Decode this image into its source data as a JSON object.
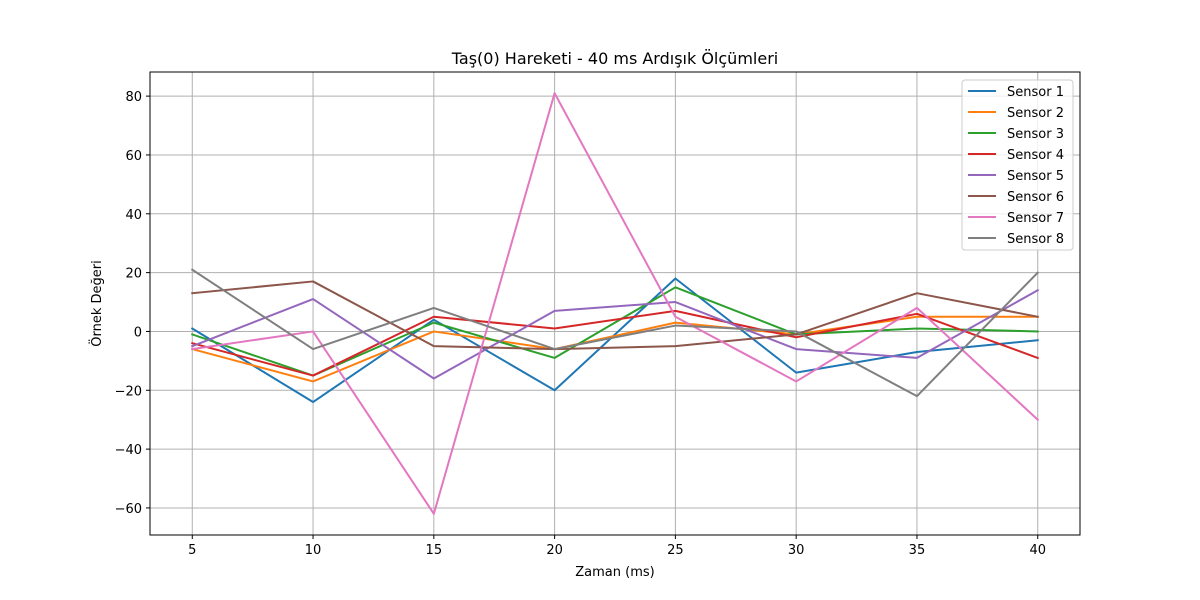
{
  "chart_data": {
    "type": "line",
    "title": "Taş(0) Hareketi - 40 ms Ardışık Ölçümleri",
    "xlabel": "Zaman (ms)",
    "ylabel": "Örnek Değeri",
    "x": [
      5,
      10,
      15,
      20,
      25,
      30,
      35,
      40
    ],
    "xticks": [
      5,
      10,
      15,
      20,
      25,
      30,
      35,
      40
    ],
    "yticks": [
      -60,
      -40,
      -20,
      0,
      20,
      40,
      60,
      80
    ],
    "xlim": [
      3.25,
      41.75
    ],
    "ylim": [
      -69.2,
      88.2
    ],
    "grid": true,
    "legend_position": "top-right",
    "series": [
      {
        "name": "Sensor 1",
        "color": "#1f77b4",
        "values": [
          1,
          -24,
          4,
          -20,
          18,
          -14,
          -7,
          -3
        ]
      },
      {
        "name": "Sensor 2",
        "color": "#ff7f0e",
        "values": [
          -6,
          -17,
          0,
          -6,
          3,
          -1,
          5,
          5
        ]
      },
      {
        "name": "Sensor 3",
        "color": "#2ca02c",
        "values": [
          -1,
          -15,
          3,
          -9,
          15,
          -1,
          1,
          0
        ]
      },
      {
        "name": "Sensor 4",
        "color": "#d62728",
        "values": [
          -4,
          -15,
          5,
          1,
          7,
          -2,
          6,
          -9
        ]
      },
      {
        "name": "Sensor 5",
        "color": "#9467bd",
        "values": [
          -5,
          11,
          -16,
          7,
          10,
          -6,
          -9,
          14
        ]
      },
      {
        "name": "Sensor 6",
        "color": "#8c564b",
        "values": [
          13,
          17,
          -5,
          -6,
          -5,
          -1,
          13,
          5
        ]
      },
      {
        "name": "Sensor 7",
        "color": "#e377c2",
        "values": [
          -6,
          0,
          -62,
          81,
          5,
          -17,
          8,
          -30
        ]
      },
      {
        "name": "Sensor 8",
        "color": "#7f7f7f",
        "values": [
          21,
          -6,
          8,
          -6,
          2,
          0,
          -22,
          20
        ]
      }
    ]
  }
}
